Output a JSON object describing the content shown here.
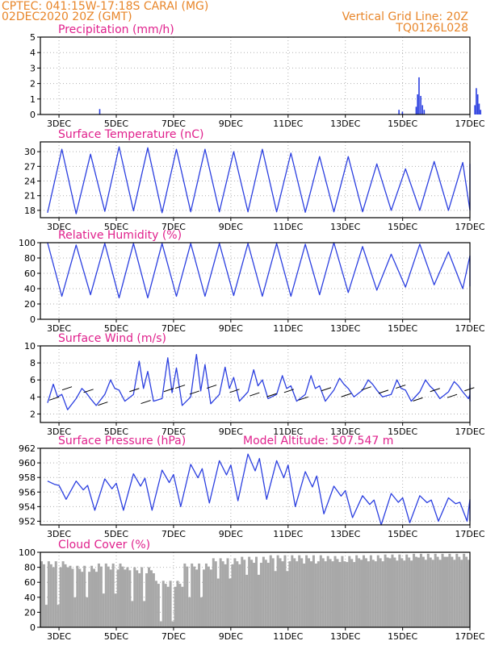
{
  "header": {
    "line1": "CPTEC:   041:15W-17:18S   CARAI (MG)",
    "line2": "02DEC2020 20Z (GMT)",
    "right1": "Vertical Grid Line: 20Z",
    "right2": "TQ0126L028"
  },
  "colors": {
    "header": "#e8862a",
    "title": "#e0208c",
    "series": "#2b3fe0",
    "cloud": "#a8a8a8",
    "arrow": "#000000"
  },
  "chart_data": [
    {
      "type": "bar",
      "title": "Precipitation (mm/h)",
      "ylim": [
        0,
        5
      ],
      "yticks": [
        0,
        1,
        2,
        3,
        4,
        5
      ],
      "xlim": [
        0,
        15
      ],
      "xticks": [
        "3DEC",
        "5DEC",
        "7DEC",
        "9DEC",
        "11DEC",
        "13DEC",
        "15DEC",
        "17DEC"
      ],
      "grid": true,
      "bars": [
        [
          1.75,
          0.35
        ],
        [
          12.2,
          0.3
        ],
        [
          12.32,
          0.18
        ],
        [
          12.8,
          0.5
        ],
        [
          12.85,
          1.3
        ],
        [
          12.9,
          2.4
        ],
        [
          12.96,
          1.2
        ],
        [
          13.02,
          0.6
        ],
        [
          13.08,
          0.3
        ],
        [
          14.85,
          0.6
        ],
        [
          14.9,
          1.7
        ],
        [
          14.95,
          1.3
        ],
        [
          15.0,
          0.7
        ],
        [
          15.05,
          0.3
        ]
      ]
    },
    {
      "type": "line",
      "title": "Surface Temperature (nC)",
      "ylim": [
        16.5,
        32
      ],
      "yticks": [
        18,
        21,
        24,
        27,
        30
      ],
      "xlim": [
        0,
        15
      ],
      "xticks": [
        "3DEC",
        "5DEC",
        "7DEC",
        "9DEC",
        "11DEC",
        "13DEC",
        "15DEC",
        "17DEC"
      ],
      "grid": true,
      "daily_max": [
        30.5,
        29.5,
        31,
        30.8,
        30.5,
        30.5,
        30,
        30.5,
        29.7,
        29,
        29,
        27.5,
        26.5,
        28,
        27.8,
        27.5
      ],
      "daily_min": [
        17.5,
        17.3,
        17.8,
        17.9,
        17.5,
        17.7,
        17.7,
        17.7,
        17.7,
        17.6,
        17.7,
        17.7,
        18,
        18,
        18,
        18
      ]
    },
    {
      "type": "line",
      "title": "Relative Humidity (%)",
      "ylim": [
        0,
        100
      ],
      "yticks": [
        0,
        20,
        40,
        60,
        80,
        100
      ],
      "xlim": [
        0,
        15
      ],
      "xticks": [
        "3DEC",
        "5DEC",
        "7DEC",
        "9DEC",
        "11DEC",
        "13DEC",
        "15DEC",
        "17DEC"
      ],
      "grid": true,
      "daily_min": [
        30,
        32,
        28,
        28,
        30,
        30,
        31,
        30,
        30,
        32,
        35,
        38,
        42,
        45,
        40,
        43
      ],
      "daily_max": [
        100,
        97,
        99,
        99,
        99,
        99,
        99,
        99,
        99,
        98,
        100,
        95,
        85,
        98,
        88,
        83
      ]
    },
    {
      "type": "line",
      "title": "Surface Wind (m/s)",
      "ylim": [
        1,
        10
      ],
      "yticks": [
        2,
        4,
        6,
        8,
        10
      ],
      "xlim": [
        0,
        15
      ],
      "xticks": [
        "3DEC",
        "5DEC",
        "7DEC",
        "9DEC",
        "11DEC",
        "13DEC",
        "15DEC",
        "17DEC"
      ],
      "grid": true,
      "daily_peak": [
        5.5,
        5.0,
        6.0,
        8.2,
        8.6,
        9.0,
        7.5,
        7.2,
        6.5,
        6.5,
        6.2,
        6.0,
        6.0,
        6.0,
        5.8,
        5.5
      ],
      "daily_low": [
        2.5,
        3.0,
        3.5,
        3.5,
        3.0,
        3.2,
        3.5,
        3.8,
        3.5,
        3.5,
        4.0,
        4.0,
        3.5,
        3.8,
        3.8,
        3.5
      ],
      "arrows": [
        [
          0.3,
          4.0
        ],
        [
          0.75,
          5.2
        ],
        [
          1.5,
          4.9
        ],
        [
          2.0,
          3.4
        ],
        [
          3.1,
          5.0
        ],
        [
          3.5,
          3.6
        ],
        [
          4.3,
          5.0
        ],
        [
          4.7,
          5.4
        ],
        [
          5.2,
          4.7
        ],
        [
          5.8,
          5.4
        ],
        [
          6.6,
          4.9
        ],
        [
          7.3,
          4.5
        ],
        [
          7.9,
          4.4
        ],
        [
          8.5,
          4.9
        ],
        [
          9.0,
          4.0
        ],
        [
          9.8,
          5.1
        ],
        [
          10.5,
          4.4
        ],
        [
          11.2,
          5.2
        ],
        [
          11.8,
          4.8
        ],
        [
          12.4,
          5.4
        ],
        [
          13.0,
          3.9
        ],
        [
          13.6,
          5.0
        ],
        [
          14.2,
          4.3
        ],
        [
          14.8,
          5.1
        ]
      ]
    },
    {
      "type": "line",
      "title": "Surface Pressure (hPa)",
      "annotation": "Model Altitude: 507.547 m",
      "ylim": [
        951.5,
        962
      ],
      "yticks": [
        952,
        954,
        956,
        958,
        960,
        962
      ],
      "xlim": [
        0,
        15
      ],
      "xticks": [
        "3DEC",
        "5DEC",
        "7DEC",
        "9DEC",
        "11DEC",
        "13DEC",
        "15DEC",
        "17DEC"
      ],
      "grid": true,
      "daily_high": [
        957.5,
        957.5,
        957.8,
        958.5,
        959.0,
        959.8,
        960.3,
        961.2,
        960.3,
        958.8,
        956.8,
        955.5,
        955.8,
        955.5,
        955.2,
        955.0
      ],
      "daily_low": [
        955.0,
        953.5,
        953.5,
        953.5,
        954.0,
        954.5,
        954.8,
        955.0,
        954.0,
        953.0,
        952.5,
        951.5,
        951.8,
        952.0,
        952.0,
        952.0
      ]
    },
    {
      "type": "area",
      "title": "Cloud Cover (%)",
      "ylim": [
        0,
        100
      ],
      "yticks": [
        0,
        20,
        40,
        60,
        80,
        100
      ],
      "xlim": [
        0,
        15
      ],
      "xticks": [
        "3DEC",
        "5DEC",
        "7DEC",
        "9DEC",
        "11DEC",
        "13DEC",
        "15DEC",
        "17DEC"
      ],
      "grid": true,
      "daily_mean": [
        88,
        82,
        85,
        80,
        62,
        85,
        92,
        94,
        96,
        96,
        95,
        96,
        97,
        98,
        98,
        98
      ],
      "daily_min": [
        30,
        40,
        45,
        35,
        8,
        40,
        65,
        70,
        75,
        85,
        88,
        90,
        92,
        93,
        94,
        95
      ]
    }
  ]
}
